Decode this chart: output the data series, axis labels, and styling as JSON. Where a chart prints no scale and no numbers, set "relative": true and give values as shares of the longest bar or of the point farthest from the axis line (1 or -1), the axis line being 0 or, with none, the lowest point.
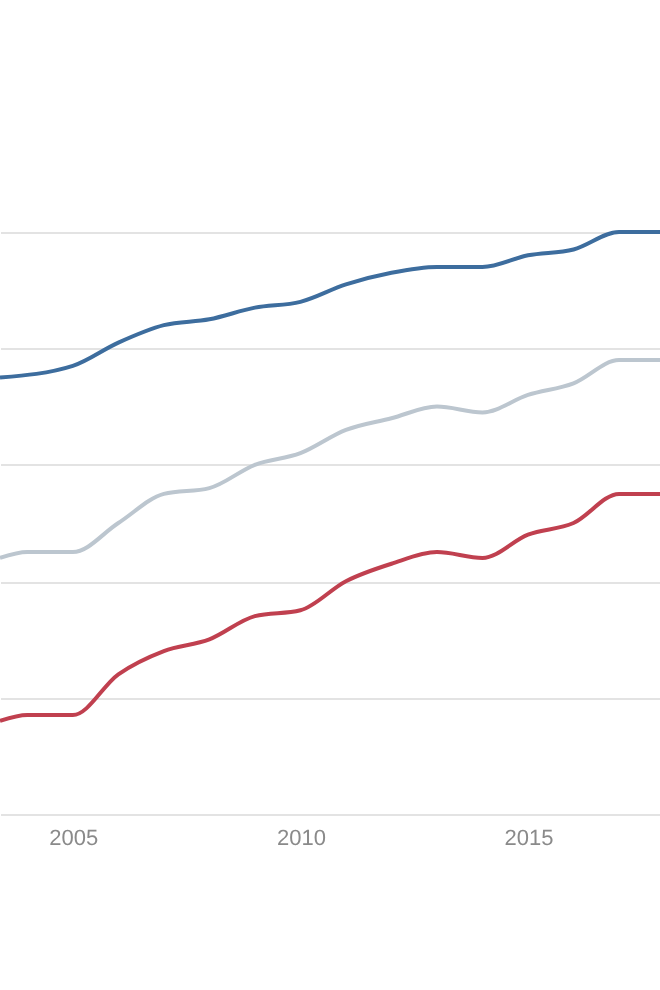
{
  "chart_data": {
    "type": "line",
    "relative": true,
    "grid": "y",
    "xlim": [
      2003.4,
      2017.9
    ],
    "xticks": [
      2005,
      2010,
      2015
    ],
    "series": [
      {
        "color": "#3d6d9e",
        "x": [
          2003.4,
          2005,
          2006,
          2007,
          2008,
          2009,
          2010,
          2011,
          2012,
          2013,
          2014,
          2015,
          2016,
          2017,
          2017.9
        ],
        "values": [
          0.75,
          0.77,
          0.81,
          0.84,
          0.85,
          0.87,
          0.88,
          0.91,
          0.93,
          0.94,
          0.94,
          0.96,
          0.97,
          1.0,
          1.0
        ]
      },
      {
        "color": "#bcc6cf",
        "x": [
          2003.4,
          2004,
          2005,
          2006,
          2007,
          2008,
          2009,
          2010,
          2011,
          2012,
          2013,
          2014,
          2015,
          2016,
          2017,
          2017.9
        ],
        "values": [
          0.44,
          0.45,
          0.45,
          0.5,
          0.55,
          0.56,
          0.6,
          0.62,
          0.66,
          0.68,
          0.7,
          0.69,
          0.72,
          0.74,
          0.78,
          0.78
        ]
      },
      {
        "color": "#c0404f",
        "x": [
          2003.4,
          2004,
          2005,
          2006,
          2007,
          2008,
          2009,
          2010,
          2011,
          2012,
          2013,
          2014,
          2015,
          2016,
          2017,
          2017.9
        ],
        "values": [
          0.16,
          0.17,
          0.17,
          0.24,
          0.28,
          0.3,
          0.34,
          0.35,
          0.4,
          0.43,
          0.45,
          0.44,
          0.48,
          0.5,
          0.55,
          0.55
        ]
      }
    ]
  }
}
